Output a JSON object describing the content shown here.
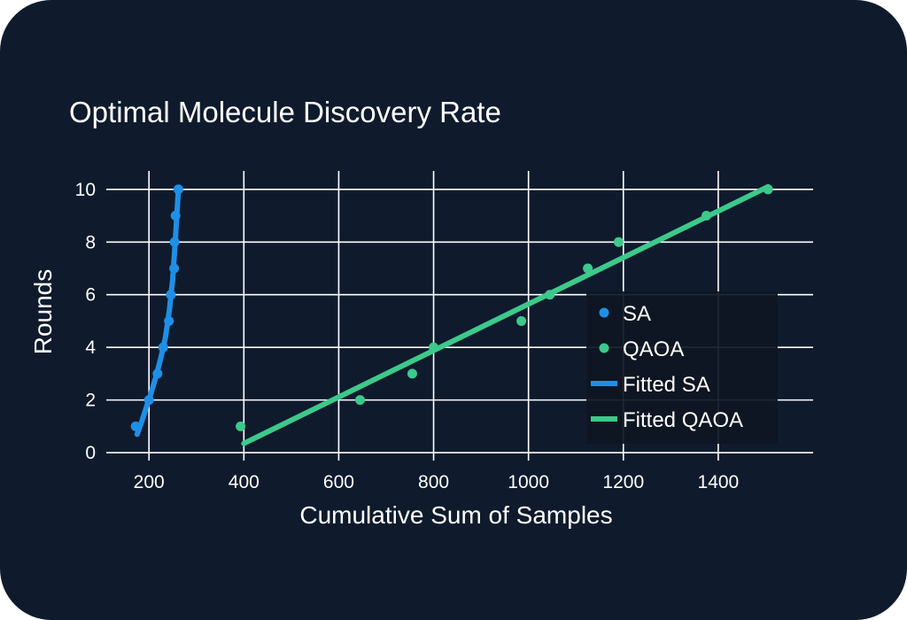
{
  "colors": {
    "background": "#0f1b2d",
    "sa": "#1f8fe6",
    "qaoa": "#3cc98b",
    "grid": "#ffffff",
    "legend_bg": "#0d1622"
  },
  "chart_data": {
    "type": "scatter",
    "title": "Optimal Molecule Discovery Rate",
    "xlabel": "Cumulative Sum of Samples",
    "ylabel": "Rounds",
    "xlim": [
      110,
      1600
    ],
    "ylim": [
      -0.3,
      10.7
    ],
    "xticks": [
      200,
      400,
      600,
      800,
      1000,
      1200,
      1400
    ],
    "yticks": [
      0,
      2,
      4,
      6,
      8,
      10
    ],
    "grid": true,
    "legend_position": "center-right",
    "legend": [
      "SA",
      "QAOA",
      "Fitted SA",
      "Fitted QAOA"
    ],
    "series": [
      {
        "name": "SA",
        "kind": "points",
        "color": "#1f8fe6",
        "x": [
          172,
          200,
          218,
          230,
          242,
          246,
          253,
          254,
          256,
          262
        ],
        "y": [
          1,
          2,
          3,
          4,
          5,
          6,
          7,
          8,
          9,
          10
        ]
      },
      {
        "name": "QAOA",
        "kind": "points",
        "color": "#3cc98b",
        "x": [
          393,
          645,
          755,
          800,
          985,
          1045,
          1125,
          1190,
          1375,
          1505
        ],
        "y": [
          1,
          2,
          3,
          4,
          5,
          6,
          7,
          8,
          9,
          10
        ]
      },
      {
        "name": "Fitted SA",
        "kind": "line",
        "color": "#1f8fe6",
        "x": [
          175,
          185,
          195,
          205,
          215,
          225,
          235,
          243,
          250,
          256,
          262
        ],
        "y": [
          0.7,
          1.2,
          1.75,
          2.3,
          2.9,
          3.6,
          4.4,
          5.4,
          6.6,
          8.2,
          10.0
        ]
      },
      {
        "name": "Fitted QAOA",
        "kind": "line",
        "color": "#3cc98b",
        "x": [
          400,
          1505
        ],
        "y": [
          0.35,
          10.1
        ]
      }
    ]
  }
}
